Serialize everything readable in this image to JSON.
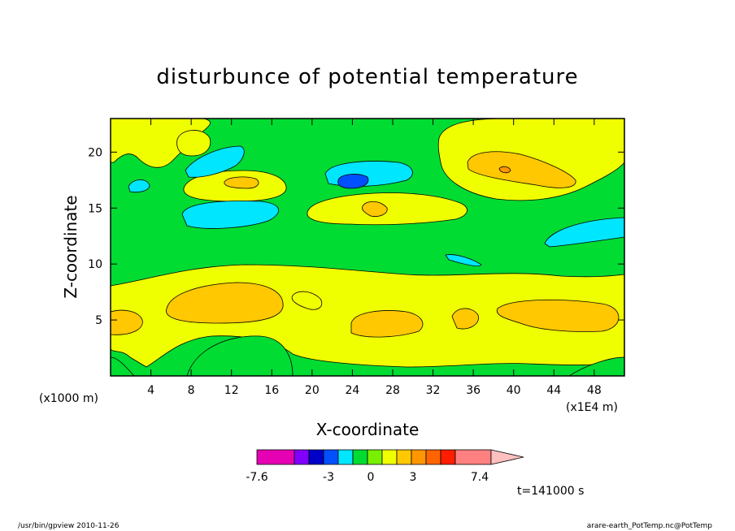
{
  "chart_data": {
    "type": "heatmap",
    "title": "disturbunce of potential temperature",
    "xlabel": "X-coordinate",
    "ylabel": "Z-coordinate",
    "x_unit": "(x1000 m)",
    "x_scale_note": "(x1E4 m)",
    "xlim": [
      0,
      51
    ],
    "ylim": [
      0,
      23
    ],
    "x_ticks": [
      4,
      8,
      12,
      16,
      20,
      24,
      28,
      32,
      36,
      40,
      44,
      48
    ],
    "y_ticks": [
      5,
      10,
      15,
      20
    ],
    "colorbar": {
      "labels": [
        "-7.6",
        "-3",
        "0",
        "3",
        "7.4"
      ],
      "colors": [
        "#e600b4",
        "#8000ff",
        "#0000c8",
        "#0050ff",
        "#00e6ff",
        "#00dc32",
        "#78f000",
        "#f0ff00",
        "#ffc800",
        "#ff9600",
        "#ff6400",
        "#ff1e00",
        "#ff8080"
      ],
      "extend_max_color": "#ffc0c0"
    },
    "time_label": "t=141000 s"
  },
  "footer": {
    "left": "/usr/bin/gpview  2010-11-26",
    "right": "arare-earth_PotTemp.nc@PotTemp"
  }
}
